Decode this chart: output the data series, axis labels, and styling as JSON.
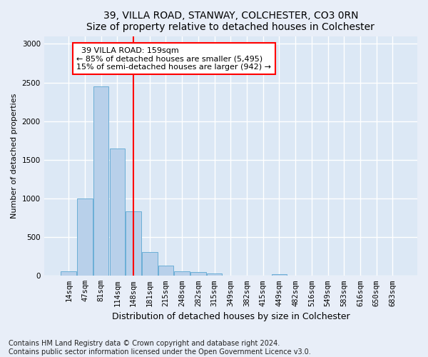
{
  "title1": "39, VILLA ROAD, STANWAY, COLCHESTER, CO3 0RN",
  "title2": "Size of property relative to detached houses in Colchester",
  "xlabel": "Distribution of detached houses by size in Colchester",
  "ylabel": "Number of detached properties",
  "footnote1": "Contains HM Land Registry data © Crown copyright and database right 2024.",
  "footnote2": "Contains public sector information licensed under the Open Government Licence v3.0.",
  "annotation_line1": "  39 VILLA ROAD: 159sqm",
  "annotation_line2": "← 85% of detached houses are smaller (5,495)",
  "annotation_line3": "15% of semi-detached houses are larger (942) →",
  "bar_labels": [
    "14sqm",
    "47sqm",
    "81sqm",
    "114sqm",
    "148sqm",
    "181sqm",
    "215sqm",
    "248sqm",
    "282sqm",
    "315sqm",
    "349sqm",
    "382sqm",
    "415sqm",
    "449sqm",
    "482sqm",
    "516sqm",
    "549sqm",
    "583sqm",
    "616sqm",
    "650sqm",
    "683sqm"
  ],
  "bar_values": [
    60,
    1000,
    2450,
    1650,
    830,
    305,
    130,
    55,
    45,
    30,
    0,
    0,
    0,
    25,
    0,
    0,
    0,
    0,
    0,
    0,
    0
  ],
  "bar_color": "#b8d0ea",
  "bar_edgecolor": "#6baed6",
  "fig_facecolor": "#e8eef8",
  "ax_facecolor": "#dce8f5",
  "grid_color": "#ffffff",
  "red_line_x": 4.0,
  "ylim": [
    0,
    3100
  ],
  "yticks": [
    0,
    500,
    1000,
    1500,
    2000,
    2500,
    3000
  ],
  "title_fontsize": 10,
  "ylabel_fontsize": 8,
  "xlabel_fontsize": 9,
  "tick_fontsize": 7.5,
  "annotation_fontsize": 8,
  "footnote_fontsize": 7
}
